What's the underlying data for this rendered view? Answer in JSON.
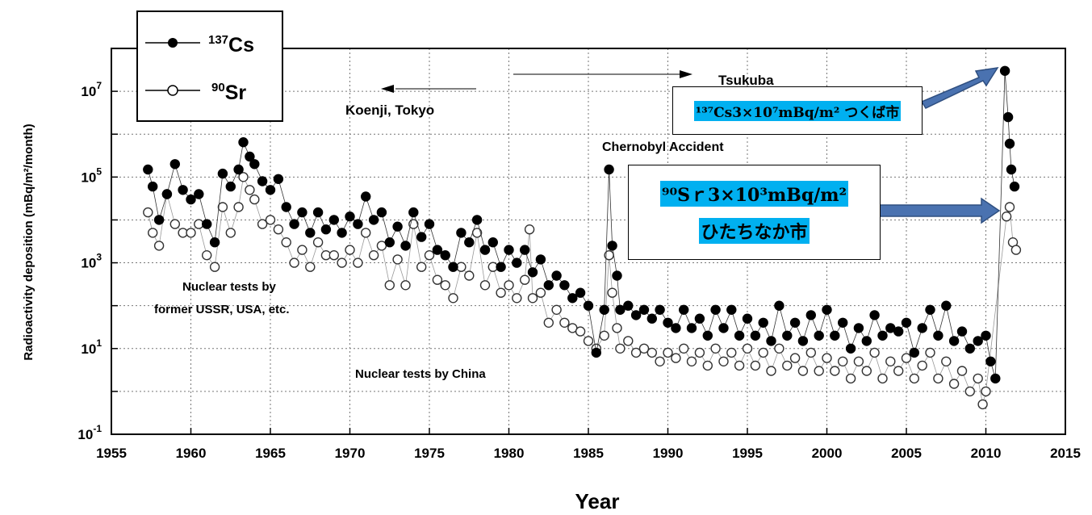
{
  "chart_data": {
    "type": "scatter",
    "title": "",
    "xlabel": "Year",
    "ylabel": "Radioactivity deposition (mBq/m²/month)",
    "xlim": [
      1955,
      2015
    ],
    "ylim_log10": [
      -1,
      8
    ],
    "y_scale": "log",
    "grid": true,
    "x_ticks": [
      "1955",
      "1960",
      "1965",
      "1970",
      "1975",
      "1980",
      "1985",
      "1990",
      "1995",
      "2000",
      "2005",
      "2010",
      "2015"
    ],
    "y_ticks": [
      {
        "base": "10",
        "exp": "7",
        "value": 10000000
      },
      {
        "base": "10",
        "exp": "5",
        "value": 100000
      },
      {
        "base": "10",
        "exp": "3",
        "value": 1000
      },
      {
        "base": "10",
        "exp": "1",
        "value": 10
      },
      {
        "base": "10",
        "exp": "-1",
        "value": 0.1
      }
    ],
    "legend": {
      "placement": "top-left",
      "entries": [
        {
          "mass": "137",
          "element": "Cs",
          "marker": "filled-circle"
        },
        {
          "mass": "90",
          "element": "Sr",
          "marker": "open-circle"
        }
      ]
    },
    "annotations": {
      "tsukuba": "Tsukuba",
      "koenji": "Koenji, Tokyo",
      "chernobyl": "Chernobyl Accident",
      "nuclear_ussr_line1": "Nuclear tests by",
      "nuclear_ussr_line2": "former USSR, USA, etc.",
      "nuclear_china": "Nuclear tests by China"
    },
    "series": [
      {
        "name": "137Cs",
        "color": "#000000",
        "points": [
          [
            1957.3,
            150000
          ],
          [
            1957.6,
            60000
          ],
          [
            1958.0,
            10000
          ],
          [
            1958.5,
            40000
          ],
          [
            1959.0,
            200000
          ],
          [
            1959.5,
            50000
          ],
          [
            1960.0,
            30000
          ],
          [
            1960.5,
            40000
          ],
          [
            1961.0,
            8000
          ],
          [
            1961.5,
            3000
          ],
          [
            1962.0,
            120000
          ],
          [
            1962.5,
            60000
          ],
          [
            1963.0,
            150000
          ],
          [
            1963.3,
            650000
          ],
          [
            1963.7,
            300000
          ],
          [
            1964.0,
            200000
          ],
          [
            1964.5,
            80000
          ],
          [
            1965.0,
            50000
          ],
          [
            1965.5,
            90000
          ],
          [
            1966.0,
            20000
          ],
          [
            1966.5,
            8000
          ],
          [
            1967.0,
            15000
          ],
          [
            1967.5,
            5000
          ],
          [
            1968.0,
            15000
          ],
          [
            1968.5,
            6000
          ],
          [
            1969.0,
            10000
          ],
          [
            1969.5,
            5000
          ],
          [
            1970.0,
            12000
          ],
          [
            1970.5,
            8000
          ],
          [
            1971.0,
            35000
          ],
          [
            1971.5,
            10000
          ],
          [
            1972.0,
            15000
          ],
          [
            1972.5,
            3000
          ],
          [
            1973.0,
            7000
          ],
          [
            1973.5,
            2500
          ],
          [
            1974.0,
            15000
          ],
          [
            1974.5,
            4000
          ],
          [
            1975.0,
            8000
          ],
          [
            1975.5,
            2000
          ],
          [
            1976.0,
            1500
          ],
          [
            1976.5,
            800
          ],
          [
            1977.0,
            5000
          ],
          [
            1977.5,
            3000
          ],
          [
            1978.0,
            10000
          ],
          [
            1978.5,
            2000
          ],
          [
            1979.0,
            3000
          ],
          [
            1979.5,
            800
          ],
          [
            1980.0,
            2000
          ],
          [
            1980.5,
            1000
          ],
          [
            1981.0,
            2000
          ],
          [
            1981.5,
            600
          ],
          [
            1982.0,
            1200
          ],
          [
            1982.5,
            300
          ],
          [
            1983.0,
            500
          ],
          [
            1983.5,
            300
          ],
          [
            1984.0,
            150
          ],
          [
            1984.5,
            200
          ],
          [
            1985.0,
            100
          ],
          [
            1985.5,
            8
          ],
          [
            1986.0,
            80
          ],
          [
            1986.3,
            150000
          ],
          [
            1986.5,
            2500
          ],
          [
            1986.8,
            500
          ],
          [
            1987.0,
            80
          ],
          [
            1987.5,
            100
          ],
          [
            1988.0,
            60
          ],
          [
            1988.5,
            80
          ],
          [
            1989.0,
            50
          ],
          [
            1989.5,
            80
          ],
          [
            1990.0,
            40
          ],
          [
            1990.5,
            30
          ],
          [
            1991.0,
            80
          ],
          [
            1991.5,
            30
          ],
          [
            1992.0,
            50
          ],
          [
            1992.5,
            20
          ],
          [
            1993.0,
            80
          ],
          [
            1993.5,
            30
          ],
          [
            1994.0,
            80
          ],
          [
            1994.5,
            20
          ],
          [
            1995.0,
            50
          ],
          [
            1995.5,
            20
          ],
          [
            1996.0,
            40
          ],
          [
            1996.5,
            15
          ],
          [
            1997.0,
            100
          ],
          [
            1997.5,
            20
          ],
          [
            1998.0,
            40
          ],
          [
            1998.5,
            15
          ],
          [
            1999.0,
            60
          ],
          [
            1999.5,
            20
          ],
          [
            2000.0,
            80
          ],
          [
            2000.5,
            20
          ],
          [
            2001.0,
            40
          ],
          [
            2001.5,
            10
          ],
          [
            2002.0,
            30
          ],
          [
            2002.5,
            15
          ],
          [
            2003.0,
            60
          ],
          [
            2003.5,
            20
          ],
          [
            2004.0,
            30
          ],
          [
            2004.5,
            25
          ],
          [
            2005.0,
            40
          ],
          [
            2005.5,
            8
          ],
          [
            2006.0,
            30
          ],
          [
            2006.5,
            80
          ],
          [
            2007.0,
            20
          ],
          [
            2007.5,
            100
          ],
          [
            2008.0,
            15
          ],
          [
            2008.5,
            25
          ],
          [
            2009.0,
            10
          ],
          [
            2009.5,
            15
          ],
          [
            2010.0,
            20
          ],
          [
            2010.3,
            5
          ],
          [
            2010.6,
            2
          ],
          [
            2011.2,
            30000000
          ],
          [
            2011.4,
            2500000
          ],
          [
            2011.5,
            600000
          ],
          [
            2011.6,
            150000
          ],
          [
            2011.8,
            60000
          ]
        ]
      },
      {
        "name": "90Sr",
        "color": "#555555",
        "points": [
          [
            1957.3,
            15000
          ],
          [
            1957.6,
            5000
          ],
          [
            1958.0,
            2500
          ],
          [
            1958.5,
            40000
          ],
          [
            1959.0,
            8000
          ],
          [
            1959.5,
            5000
          ],
          [
            1960.0,
            5000
          ],
          [
            1960.5,
            8000
          ],
          [
            1961.0,
            1500
          ],
          [
            1961.5,
            800
          ],
          [
            1962.0,
            20000
          ],
          [
            1962.5,
            5000
          ],
          [
            1963.0,
            20000
          ],
          [
            1963.3,
            100000
          ],
          [
            1963.7,
            50000
          ],
          [
            1964.0,
            30000
          ],
          [
            1964.5,
            8000
          ],
          [
            1965.0,
            10000
          ],
          [
            1965.5,
            6000
          ],
          [
            1966.0,
            3000
          ],
          [
            1966.5,
            1000
          ],
          [
            1967.0,
            2000
          ],
          [
            1967.5,
            800
          ],
          [
            1968.0,
            3000
          ],
          [
            1968.5,
            1500
          ],
          [
            1969.0,
            1500
          ],
          [
            1969.5,
            1000
          ],
          [
            1970.0,
            2000
          ],
          [
            1970.5,
            1000
          ],
          [
            1971.0,
            5000
          ],
          [
            1971.5,
            1500
          ],
          [
            1972.0,
            2500
          ],
          [
            1972.5,
            300
          ],
          [
            1973.0,
            1200
          ],
          [
            1973.5,
            300
          ],
          [
            1974.0,
            8000
          ],
          [
            1974.5,
            800
          ],
          [
            1975.0,
            1500
          ],
          [
            1975.5,
            400
          ],
          [
            1976.0,
            300
          ],
          [
            1976.5,
            150
          ],
          [
            1977.0,
            800
          ],
          [
            1977.5,
            500
          ],
          [
            1978.0,
            5000
          ],
          [
            1978.5,
            300
          ],
          [
            1979.0,
            800
          ],
          [
            1979.5,
            200
          ],
          [
            1980.0,
            300
          ],
          [
            1980.5,
            150
          ],
          [
            1981.0,
            400
          ],
          [
            1981.3,
            6000
          ],
          [
            1981.5,
            150
          ],
          [
            1982.0,
            200
          ],
          [
            1982.5,
            40
          ],
          [
            1983.0,
            80
          ],
          [
            1983.5,
            40
          ],
          [
            1984.0,
            30
          ],
          [
            1984.5,
            25
          ],
          [
            1985.0,
            15
          ],
          [
            1985.5,
            10
          ],
          [
            1986.0,
            20
          ],
          [
            1986.3,
            1500
          ],
          [
            1986.5,
            200
          ],
          [
            1986.8,
            30
          ],
          [
            1987.0,
            10
          ],
          [
            1987.5,
            15
          ],
          [
            1988.0,
            8
          ],
          [
            1988.5,
            10
          ],
          [
            1989.0,
            8
          ],
          [
            1989.5,
            5
          ],
          [
            1990.0,
            8
          ],
          [
            1990.5,
            6
          ],
          [
            1991.0,
            10
          ],
          [
            1991.5,
            5
          ],
          [
            1992.0,
            8
          ],
          [
            1992.5,
            4
          ],
          [
            1993.0,
            10
          ],
          [
            1993.5,
            5
          ],
          [
            1994.0,
            8
          ],
          [
            1994.5,
            4
          ],
          [
            1995.0,
            10
          ],
          [
            1995.5,
            4
          ],
          [
            1996.0,
            8
          ],
          [
            1996.5,
            3
          ],
          [
            1997.0,
            10
          ],
          [
            1997.5,
            4
          ],
          [
            1998.0,
            6
          ],
          [
            1998.5,
            3
          ],
          [
            1999.0,
            8
          ],
          [
            1999.5,
            3
          ],
          [
            2000.0,
            6
          ],
          [
            2000.5,
            3
          ],
          [
            2001.0,
            5
          ],
          [
            2001.5,
            2
          ],
          [
            2002.0,
            5
          ],
          [
            2002.5,
            3
          ],
          [
            2003.0,
            8
          ],
          [
            2003.5,
            2
          ],
          [
            2004.0,
            5
          ],
          [
            2004.5,
            3
          ],
          [
            2005.0,
            6
          ],
          [
            2005.5,
            2
          ],
          [
            2006.0,
            4
          ],
          [
            2006.5,
            8
          ],
          [
            2007.0,
            2
          ],
          [
            2007.5,
            5
          ],
          [
            2008.0,
            1.5
          ],
          [
            2008.5,
            3
          ],
          [
            2009.0,
            1
          ],
          [
            2009.5,
            2
          ],
          [
            2009.8,
            0.5
          ],
          [
            2010.0,
            1
          ],
          [
            2011.3,
            12000
          ],
          [
            2011.5,
            20000
          ],
          [
            2011.7,
            3000
          ],
          [
            2011.9,
            2000
          ]
        ]
      }
    ]
  },
  "callouts": {
    "tsukuba_cs": "¹³⁷Cs3×10⁷mBq/m² つくば市",
    "hitachinaka_sr_line1": "⁹⁰Sｒ3×10³mBq/m²",
    "hitachinaka_sr_line2": "ひたちなか市",
    "highlight_color": "#00b0f0",
    "arrow_color": "#4a72b0"
  }
}
